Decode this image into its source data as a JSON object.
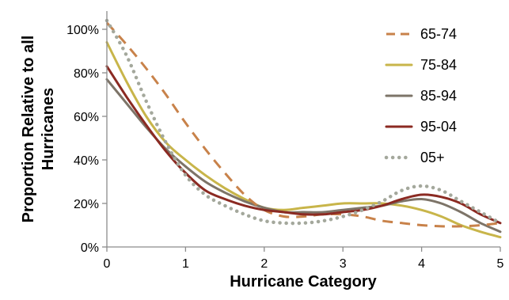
{
  "chart_data": {
    "type": "line",
    "xlabel": "Hurricane Category",
    "ylabel_lines": [
      "Proportion Relative to  all",
      "Hurricanes"
    ],
    "xlim": [
      0,
      5
    ],
    "ylim": [
      0,
      100
    ],
    "x_ticks": [
      "0",
      "1",
      "2",
      "3",
      "4",
      "5"
    ],
    "y_ticks": [
      "0%",
      "20%",
      "40%",
      "60%",
      "80%",
      "100%"
    ],
    "grid": false,
    "legend_position": "top-right",
    "series": [
      {
        "name": "65-74",
        "color": "#c8824a",
        "dash": "dash",
        "x": [
          0,
          0.25,
          0.5,
          0.75,
          1,
          1.25,
          1.5,
          1.75,
          2,
          2.25,
          2.5,
          2.75,
          3,
          3.25,
          3.5,
          3.75,
          4,
          4.25,
          4.5,
          4.75,
          5
        ],
        "y": [
          103,
          93,
          82,
          70,
          57,
          45,
          34,
          24,
          17,
          14,
          14,
          15,
          15,
          14,
          12,
          11,
          10,
          9.5,
          9.5,
          10,
          11
        ]
      },
      {
        "name": "75-84",
        "color": "#c8b54a",
        "dash": "solid",
        "x": [
          0,
          0.25,
          0.5,
          0.75,
          1,
          1.25,
          1.5,
          1.75,
          2,
          2.25,
          2.5,
          2.75,
          3,
          3.25,
          3.5,
          3.75,
          4,
          4.25,
          4.5,
          4.75,
          5
        ],
        "y": [
          94,
          76,
          60,
          48,
          40,
          33,
          27,
          22,
          18,
          17,
          18,
          19,
          20,
          20,
          20,
          19,
          17,
          14,
          10,
          7,
          4.5
        ]
      },
      {
        "name": "85-94",
        "color": "#7d7468",
        "dash": "solid",
        "x": [
          0,
          0.25,
          0.5,
          0.75,
          1,
          1.25,
          1.5,
          1.75,
          2,
          2.25,
          2.5,
          2.75,
          3,
          3.25,
          3.5,
          3.75,
          4,
          4.25,
          4.5,
          4.75,
          5
        ],
        "y": [
          77,
          66,
          55,
          45,
          37,
          30,
          25,
          21,
          18,
          16,
          16,
          16,
          17,
          18,
          19,
          21,
          22,
          20,
          16,
          11,
          7
        ]
      },
      {
        "name": "95-04",
        "color": "#8b2a22",
        "dash": "solid",
        "x": [
          0,
          0.25,
          0.5,
          0.75,
          1,
          1.25,
          1.5,
          1.75,
          2,
          2.25,
          2.5,
          2.75,
          3,
          3.25,
          3.5,
          3.75,
          4,
          4.25,
          4.5,
          4.75,
          5
        ],
        "y": [
          83,
          69,
          56,
          44,
          34,
          26,
          22,
          19,
          17,
          16,
          15,
          15,
          16,
          17,
          19,
          22,
          24,
          23,
          20,
          15,
          11
        ]
      },
      {
        "name": "05+",
        "color": "#a4a89c",
        "dash": "dot",
        "x": [
          0,
          0.25,
          0.5,
          0.75,
          1,
          1.25,
          1.5,
          1.75,
          2,
          2.25,
          2.5,
          2.75,
          3,
          3.25,
          3.5,
          3.75,
          4,
          4.25,
          4.5,
          4.75,
          5
        ],
        "y": [
          104,
          88,
          67,
          48,
          33,
          24,
          19,
          15,
          12,
          11,
          11,
          12,
          14,
          17,
          21,
          26,
          28,
          26,
          21,
          16,
          11
        ]
      }
    ]
  }
}
